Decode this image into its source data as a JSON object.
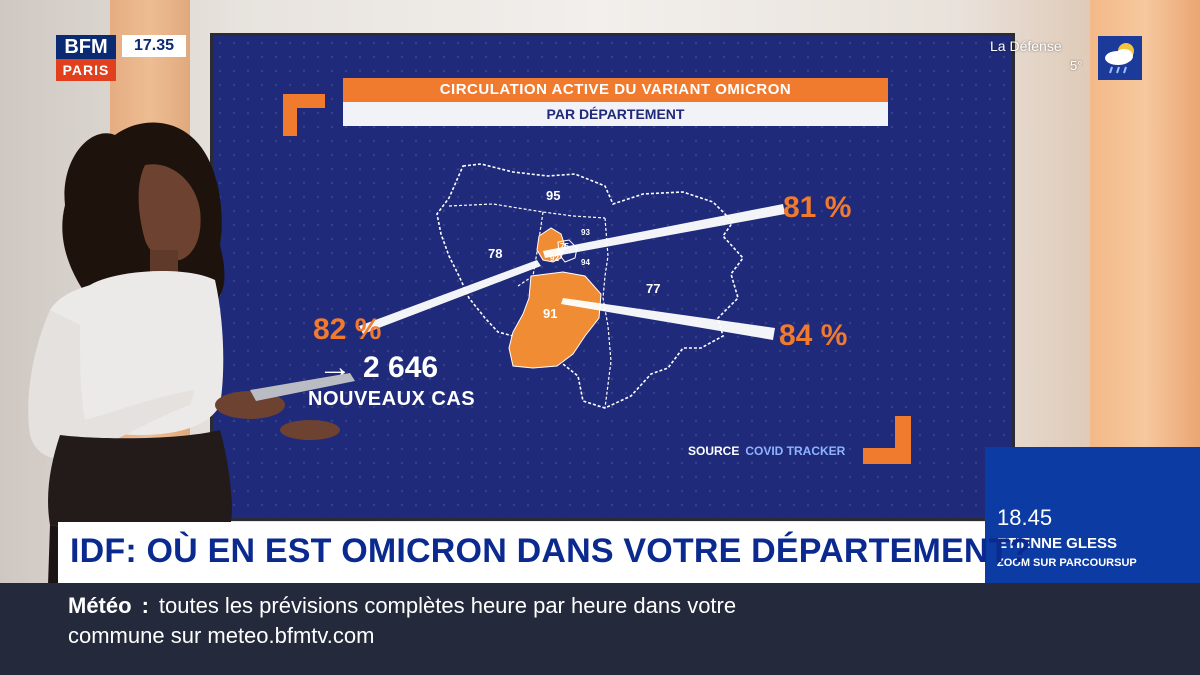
{
  "channel": {
    "logo_top": "BFM",
    "logo_bottom": "PARIS",
    "clock": "17.35"
  },
  "weather": {
    "city": "La Défense",
    "temp": "5°",
    "icon": "cloud-rain-sun-icon"
  },
  "graphic": {
    "title": "CIRCULATION ACTIVE DU VARIANT OMICRON",
    "subtitle": "PAR DÉPARTEMENT",
    "departments": [
      "95",
      "78",
      "93",
      "75",
      "92",
      "94",
      "77",
      "91"
    ],
    "callouts": {
      "top_right": "81 %",
      "bottom_right": "84 %",
      "left": "82 %"
    },
    "cases_arrow": "→",
    "cases_number": "2 646",
    "cases_label": "NOUVEAUX CAS",
    "source_label": "SOURCE",
    "source_name": "COVID TRACKER",
    "colors": {
      "background": "#1f2a7a",
      "accent": "#f07a2d"
    }
  },
  "headline": "IDF: OÙ EN EST OMICRON DANS VOTRE DÉPARTEMENT?",
  "next_show": {
    "time": "18.45",
    "name": "ETIENNE GLESS",
    "subtitle": "ZOOM SUR PARCOURSUP"
  },
  "ticker": {
    "label": "Météo",
    "separator": ":",
    "line1": "toutes les prévisions complètes heure par heure dans votre",
    "line2": "commune sur meteo.bfmtv.com"
  }
}
